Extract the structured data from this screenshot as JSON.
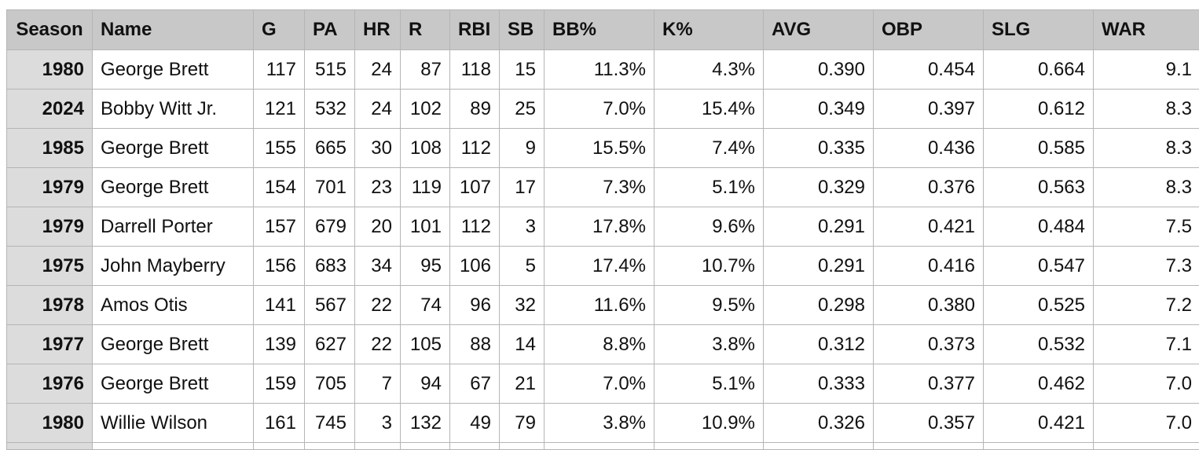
{
  "headers": [
    "Season",
    "Name",
    "G",
    "PA",
    "HR",
    "R",
    "RBI",
    "SB",
    "BB%",
    "K%",
    "AVG",
    "OBP",
    "SLG",
    "WAR"
  ],
  "rows": [
    [
      "1980",
      "George Brett",
      "117",
      "515",
      "24",
      "87",
      "118",
      "15",
      "11.3%",
      "4.3%",
      "0.390",
      "0.454",
      "0.664",
      "9.1"
    ],
    [
      "2024",
      "Bobby Witt Jr.",
      "121",
      "532",
      "24",
      "102",
      "89",
      "25",
      "7.0%",
      "15.4%",
      "0.349",
      "0.397",
      "0.612",
      "8.3"
    ],
    [
      "1985",
      "George Brett",
      "155",
      "665",
      "30",
      "108",
      "112",
      "9",
      "15.5%",
      "7.4%",
      "0.335",
      "0.436",
      "0.585",
      "8.3"
    ],
    [
      "1979",
      "George Brett",
      "154",
      "701",
      "23",
      "119",
      "107",
      "17",
      "7.3%",
      "5.1%",
      "0.329",
      "0.376",
      "0.563",
      "8.3"
    ],
    [
      "1979",
      "Darrell Porter",
      "157",
      "679",
      "20",
      "101",
      "112",
      "3",
      "17.8%",
      "9.6%",
      "0.291",
      "0.421",
      "0.484",
      "7.5"
    ],
    [
      "1975",
      "John Mayberry",
      "156",
      "683",
      "34",
      "95",
      "106",
      "5",
      "17.4%",
      "10.7%",
      "0.291",
      "0.416",
      "0.547",
      "7.3"
    ],
    [
      "1978",
      "Amos Otis",
      "141",
      "567",
      "22",
      "74",
      "96",
      "32",
      "11.6%",
      "9.5%",
      "0.298",
      "0.380",
      "0.525",
      "7.2"
    ],
    [
      "1977",
      "George Brett",
      "139",
      "627",
      "22",
      "105",
      "88",
      "14",
      "8.8%",
      "3.8%",
      "0.312",
      "0.373",
      "0.532",
      "7.1"
    ],
    [
      "1976",
      "George Brett",
      "159",
      "705",
      "7",
      "94",
      "67",
      "21",
      "7.0%",
      "5.1%",
      "0.333",
      "0.377",
      "0.462",
      "7.0"
    ],
    [
      "1980",
      "Willie Wilson",
      "161",
      "745",
      "3",
      "132",
      "49",
      "79",
      "3.8%",
      "10.9%",
      "0.326",
      "0.357",
      "0.421",
      "7.0"
    ]
  ]
}
